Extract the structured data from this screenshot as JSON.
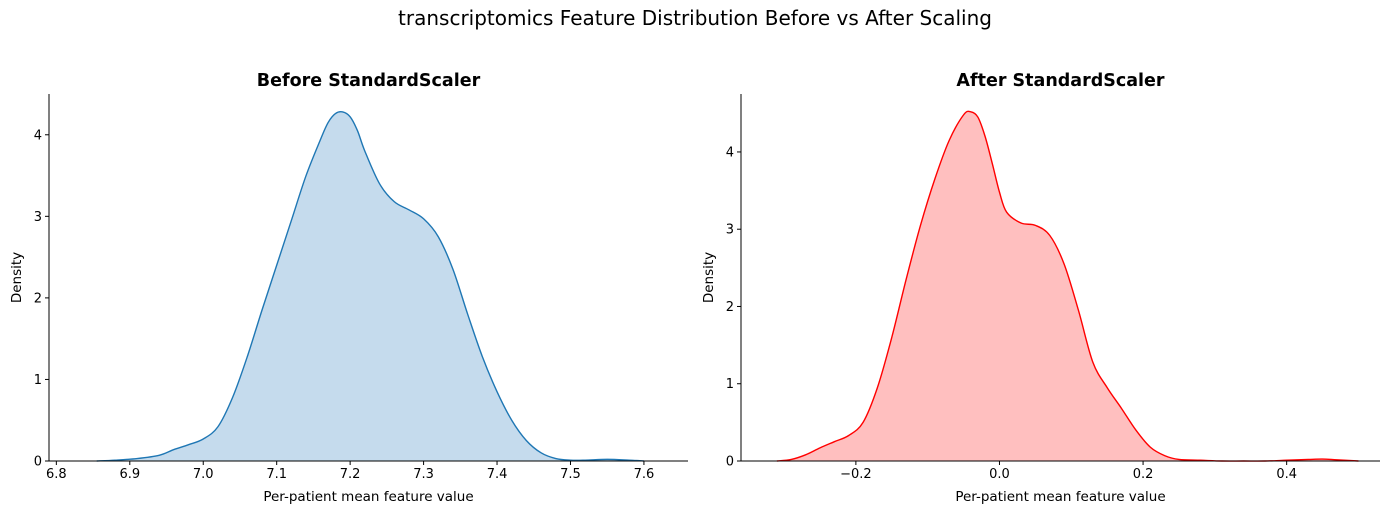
{
  "figure": {
    "suptitle": "transcriptomics Feature Distribution Before vs After Scaling"
  },
  "chart_data": [
    {
      "type": "area",
      "title": "Before StandardScaler",
      "xlabel": "Per-patient mean feature value",
      "ylabel": "Density",
      "xlim": [
        6.79,
        7.66
      ],
      "ylim": [
        0,
        4.5
      ],
      "xticks": [
        6.8,
        6.9,
        7.0,
        7.1,
        7.2,
        7.3,
        7.4,
        7.5,
        7.6
      ],
      "xtick_labels": [
        "6.8",
        "6.9",
        "7.0",
        "7.1",
        "7.2",
        "7.3",
        "7.4",
        "7.5",
        "7.6"
      ],
      "yticks": [
        0,
        1,
        2,
        3,
        4
      ],
      "ytick_labels": [
        "0",
        "1",
        "2",
        "3",
        "4"
      ],
      "color": "#1f77b4",
      "fill_color": "#c5dbed",
      "grid": false,
      "x": [
        6.855,
        6.88,
        6.91,
        6.94,
        6.96,
        6.98,
        7.0,
        7.02,
        7.04,
        7.06,
        7.08,
        7.1,
        7.12,
        7.14,
        7.16,
        7.17,
        7.18,
        7.19,
        7.2,
        7.21,
        7.22,
        7.24,
        7.26,
        7.28,
        7.3,
        7.32,
        7.34,
        7.36,
        7.38,
        7.4,
        7.42,
        7.44,
        7.46,
        7.48,
        7.5,
        7.52,
        7.55,
        7.58,
        7.6
      ],
      "y": [
        0.0,
        0.01,
        0.03,
        0.07,
        0.14,
        0.2,
        0.27,
        0.42,
        0.78,
        1.28,
        1.85,
        2.4,
        2.95,
        3.5,
        3.95,
        4.15,
        4.26,
        4.28,
        4.22,
        4.05,
        3.8,
        3.4,
        3.18,
        3.08,
        2.97,
        2.75,
        2.35,
        1.8,
        1.28,
        0.85,
        0.5,
        0.25,
        0.1,
        0.03,
        0.01,
        0.01,
        0.02,
        0.01,
        0.0
      ]
    },
    {
      "type": "area",
      "title": "After StandardScaler",
      "xlabel": "Per-patient mean feature value",
      "ylabel": "Density",
      "xlim": [
        -0.36,
        0.53
      ],
      "ylim": [
        0,
        4.75
      ],
      "xticks": [
        -0.2,
        0.0,
        0.2,
        0.4
      ],
      "xtick_labels": [
        "−0.2",
        "0.0",
        "0.2",
        "0.4"
      ],
      "yticks": [
        0,
        1,
        2,
        3,
        4
      ],
      "ytick_labels": [
        "0",
        "1",
        "2",
        "3",
        "4"
      ],
      "color": "#ff0000",
      "fill_color": "#ffbfbf",
      "grid": false,
      "x": [
        -0.31,
        -0.29,
        -0.27,
        -0.25,
        -0.23,
        -0.21,
        -0.19,
        -0.17,
        -0.15,
        -0.13,
        -0.11,
        -0.09,
        -0.07,
        -0.05,
        -0.04,
        -0.03,
        -0.02,
        -0.01,
        0.0,
        0.01,
        0.03,
        0.05,
        0.07,
        0.09,
        0.11,
        0.13,
        0.15,
        0.17,
        0.19,
        0.21,
        0.23,
        0.25,
        0.28,
        0.31,
        0.34,
        0.37,
        0.4,
        0.43,
        0.45,
        0.47,
        0.5
      ],
      "y": [
        0.0,
        0.02,
        0.08,
        0.17,
        0.25,
        0.33,
        0.5,
        0.95,
        1.6,
        2.35,
        3.05,
        3.65,
        4.15,
        4.48,
        4.52,
        4.45,
        4.2,
        3.85,
        3.48,
        3.22,
        3.08,
        3.05,
        2.92,
        2.55,
        1.95,
        1.28,
        0.95,
        0.68,
        0.4,
        0.18,
        0.07,
        0.02,
        0.01,
        0.0,
        0.0,
        0.0,
        0.01,
        0.02,
        0.025,
        0.015,
        0.0
      ]
    }
  ]
}
